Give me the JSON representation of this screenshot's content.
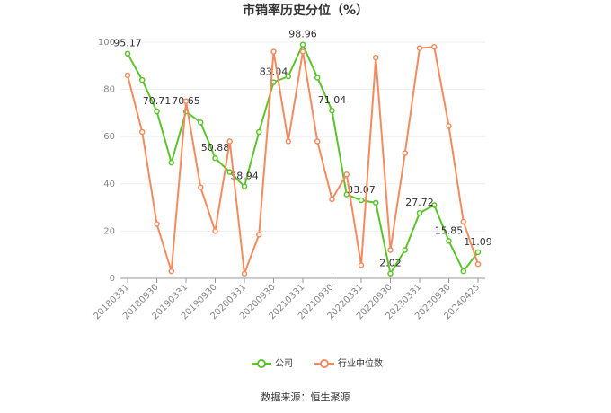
{
  "chart_data": {
    "type": "line",
    "title": "市销率历史分位（%）",
    "source": "数据来源：恒生聚源",
    "categories": [
      "20180331",
      null,
      "20180930",
      null,
      "20190331",
      null,
      "20190930",
      null,
      "20200331",
      null,
      "20200930",
      null,
      "20210331",
      null,
      "20210930",
      null,
      "20220331",
      null,
      "20220930",
      null,
      "20230331",
      null,
      "20230930",
      null,
      "20240425"
    ],
    "series": [
      {
        "name": "公司",
        "color": "#5dc32b",
        "values": [
          95.17,
          84,
          70.71,
          49,
          70.65,
          66,
          50.88,
          45,
          38.94,
          62,
          83.04,
          85.5,
          98.96,
          85,
          71.04,
          35.5,
          33.07,
          32,
          2.02,
          12,
          27.72,
          31,
          15.85,
          3,
          11.09
        ],
        "value_labels": [
          "95.17",
          null,
          "70.71",
          null,
          "70.65",
          null,
          "50.88",
          null,
          "38.94",
          null,
          "83.04",
          null,
          "98.96",
          null,
          "71.04",
          null,
          "33.07",
          null,
          "2.02",
          null,
          "27.72",
          null,
          "15.85",
          null,
          "11.09"
        ]
      },
      {
        "name": "行业中位数",
        "color": "#f48b5e",
        "values": [
          86,
          62,
          23,
          3,
          75,
          38.5,
          20,
          58,
          2,
          18.5,
          96,
          58,
          96,
          58,
          33.5,
          44,
          5.5,
          93.5,
          12,
          53,
          97.5,
          98,
          64.5,
          24,
          6
        ]
      }
    ],
    "ylim": [
      0,
      100
    ],
    "yticks": [
      0,
      20,
      40,
      60,
      80,
      100
    ],
    "grid": true
  }
}
